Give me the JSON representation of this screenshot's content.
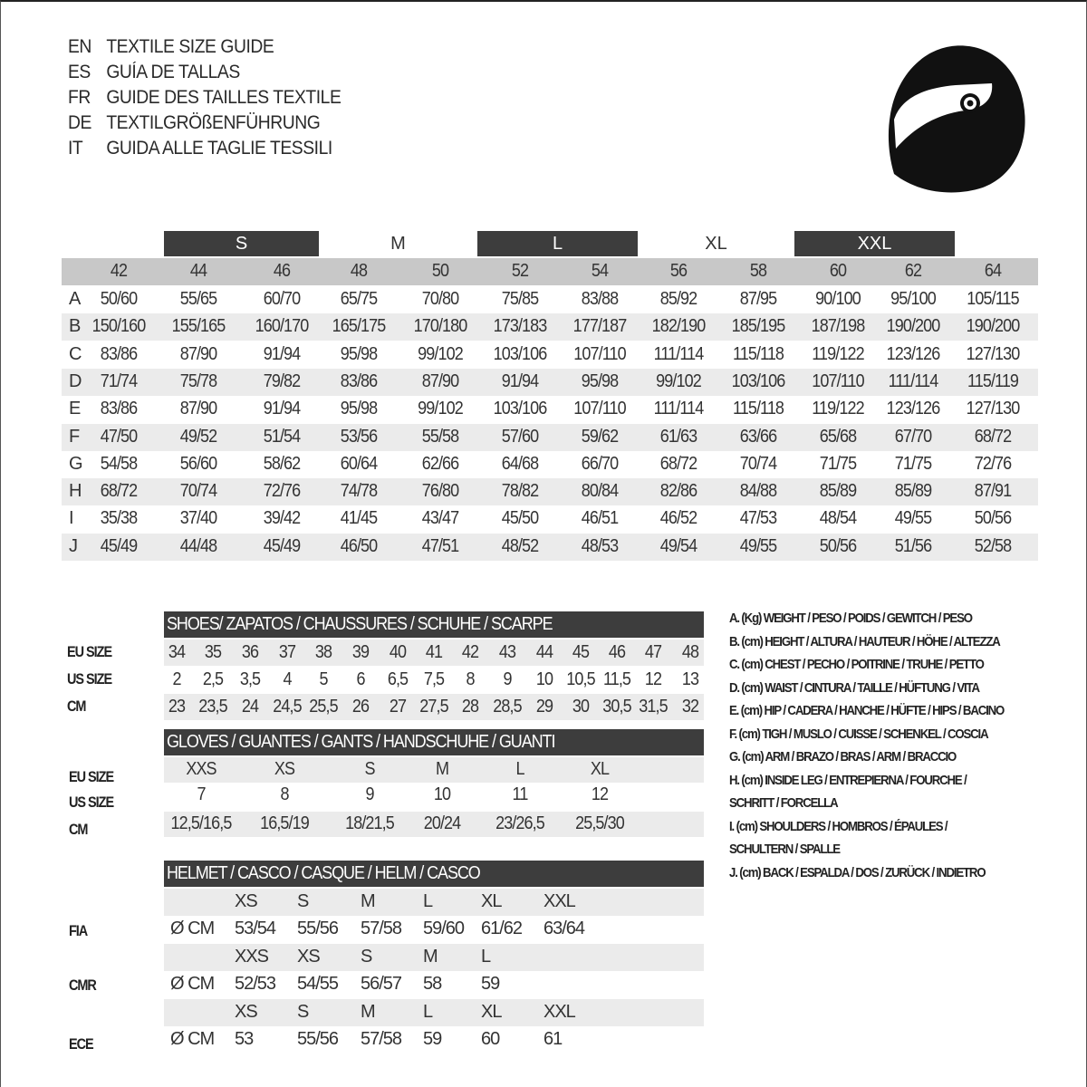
{
  "titles": [
    {
      "code": "EN",
      "text": "TEXTILE SIZE GUIDE"
    },
    {
      "code": "ES",
      "text": "GUÍA DE TALLAS"
    },
    {
      "code": "FR",
      "text": "GUIDE DES TAILLES TEXTILE"
    },
    {
      "code": "DE",
      "text": "TEXTILGRÖßENFÜHRUNG"
    },
    {
      "code": "IT",
      "text": "GUIDA ALLE TAGLIE TESSILI"
    }
  ],
  "logo_icon": "helmet-icon",
  "textile": {
    "size_groups": [
      "S",
      "M",
      "L",
      "XL",
      "XXL"
    ],
    "sizes": [
      "42",
      "44",
      "46",
      "48",
      "50",
      "52",
      "54",
      "56",
      "58",
      "60",
      "62",
      "64"
    ],
    "rows": [
      {
        "label": "A",
        "values": [
          "50/60",
          "55/65",
          "60/70",
          "65/75",
          "70/80",
          "75/85",
          "83/88",
          "85/92",
          "87/95",
          "90/100",
          "95/100",
          "105/115"
        ]
      },
      {
        "label": "B",
        "values": [
          "150/160",
          "155/165",
          "160/170",
          "165/175",
          "170/180",
          "173/183",
          "177/187",
          "182/190",
          "185/195",
          "187/198",
          "190/200",
          "190/200"
        ]
      },
      {
        "label": "C",
        "values": [
          "83/86",
          "87/90",
          "91/94",
          "95/98",
          "99/102",
          "103/106",
          "107/110",
          "111/114",
          "115/118",
          "119/122",
          "123/126",
          "127/130"
        ]
      },
      {
        "label": "D",
        "values": [
          "71/74",
          "75/78",
          "79/82",
          "83/86",
          "87/90",
          "91/94",
          "95/98",
          "99/102",
          "103/106",
          "107/110",
          "111/114",
          "115/119"
        ]
      },
      {
        "label": "E",
        "values": [
          "83/86",
          "87/90",
          "91/94",
          "95/98",
          "99/102",
          "103/106",
          "107/110",
          "111/114",
          "115/118",
          "119/122",
          "123/126",
          "127/130"
        ]
      },
      {
        "label": "F",
        "values": [
          "47/50",
          "49/52",
          "51/54",
          "53/56",
          "55/58",
          "57/60",
          "59/62",
          "61/63",
          "63/66",
          "65/68",
          "67/70",
          "68/72"
        ]
      },
      {
        "label": "G",
        "values": [
          "54/58",
          "56/60",
          "58/62",
          "60/64",
          "62/66",
          "64/68",
          "66/70",
          "68/72",
          "70/74",
          "71/75",
          "71/75",
          "72/76"
        ]
      },
      {
        "label": "H",
        "values": [
          "68/72",
          "70/74",
          "72/76",
          "74/78",
          "76/80",
          "78/82",
          "80/84",
          "82/86",
          "84/88",
          "85/89",
          "85/89",
          "87/91"
        ]
      },
      {
        "label": "I",
        "values": [
          "35/38",
          "37/40",
          "39/42",
          "41/45",
          "43/47",
          "45/50",
          "46/51",
          "46/52",
          "47/53",
          "48/54",
          "49/55",
          "50/56"
        ]
      },
      {
        "label": "J",
        "values": [
          "45/49",
          "44/48",
          "45/49",
          "46/50",
          "47/51",
          "48/52",
          "48/53",
          "49/54",
          "49/55",
          "50/56",
          "51/56",
          "52/58"
        ]
      }
    ]
  },
  "shoes": {
    "title": "SHOES/ ZAPATOS / CHAUSSURES / SCHUHE / SCARPE",
    "rows": [
      {
        "label": "EU SIZE",
        "values": [
          "34",
          "35",
          "36",
          "37",
          "38",
          "39",
          "40",
          "41",
          "42",
          "43",
          "44",
          "45",
          "46",
          "47",
          "48"
        ]
      },
      {
        "label": "US SIZE",
        "values": [
          "2",
          "2,5",
          "3,5",
          "4",
          "5",
          "6",
          "6,5",
          "7,5",
          "8",
          "9",
          "10",
          "10,5",
          "11,5",
          "12",
          "13"
        ]
      },
      {
        "label": "CM",
        "values": [
          "23",
          "23,5",
          "24",
          "24,5",
          "25,5",
          "26",
          "27",
          "27,5",
          "28",
          "28,5",
          "29",
          "30",
          "30,5",
          "31,5",
          "32"
        ]
      }
    ]
  },
  "gloves": {
    "title": "GLOVES / GUANTES / GANTS / HANDSCHUHE / GUANTI",
    "rows": [
      {
        "label": "EU SIZE",
        "values": [
          "XXS",
          "XS",
          "S",
          "M",
          "L",
          "XL"
        ]
      },
      {
        "label": "US SIZE",
        "values": [
          "7",
          "8",
          "9",
          "10",
          "11",
          "12"
        ]
      },
      {
        "label": "CM",
        "values": [
          "12,5/16,5",
          "16,5/19",
          "18/21,5",
          "20/24",
          "23/26,5",
          "25,5/30"
        ]
      }
    ]
  },
  "helmet": {
    "title": "HELMET / CASCO / CASQUE / HELM / CASCO",
    "unit": "Ø CM",
    "standards": [
      {
        "label": "FIA",
        "sizes": [
          "XS",
          "S",
          "M",
          "L",
          "XL",
          "XXL"
        ],
        "values": [
          "53/54",
          "55/56",
          "57/58",
          "59/60",
          "61/62",
          "63/64"
        ]
      },
      {
        "label": "CMR",
        "sizes": [
          "XXS",
          "XS",
          "S",
          "M",
          "L"
        ],
        "values": [
          "52/53",
          "54/55",
          "56/57",
          "58",
          "59"
        ]
      },
      {
        "label": "ECE",
        "sizes": [
          "XS",
          "S",
          "M",
          "L",
          "XL",
          "XXL"
        ],
        "values": [
          "53",
          "55/56",
          "57/58",
          "59",
          "60",
          "61"
        ]
      }
    ]
  },
  "legend": [
    "A. (Kg) WEIGHT / PESO / POIDS / GEWITCH / PESO",
    "B. (cm) HEIGHT / ALTURA / HAUTEUR / HÖHE / ALTEZZA",
    "C. (cm) CHEST / PECHO / POITRINE / TRUHE / PETTO",
    "D. (cm) WAIST / CINTURA / TAILLE / HÜFTUNG / VITA",
    "E. (cm) HIP / CADERA / HANCHE / HÜFTE / HIPS /  BACINO",
    "F.  (cm) TIGH / MUSLO / CUISSE / SCHENKEL / COSCIA",
    "G. (cm) ARM  / BRAZO / BRAS / ARM / BRACCIO",
    "H. (cm) INSIDE LEG / ENTREPIERNA / FOURCHE /",
    "SCHRITT / FORCELLA",
    "I.  (cm) SHOULDERS / HOMBROS / ÉPAULES /",
    "SCHULTERN / SPALLE",
    "J. (cm) BACK / ESPALDA / DOS / ZURÜCK / INDIETRO"
  ],
  "colors": {
    "dark_bar": "#3d3d3d",
    "size_band": "#c8c8c8",
    "stripe": "#ebebeb"
  }
}
